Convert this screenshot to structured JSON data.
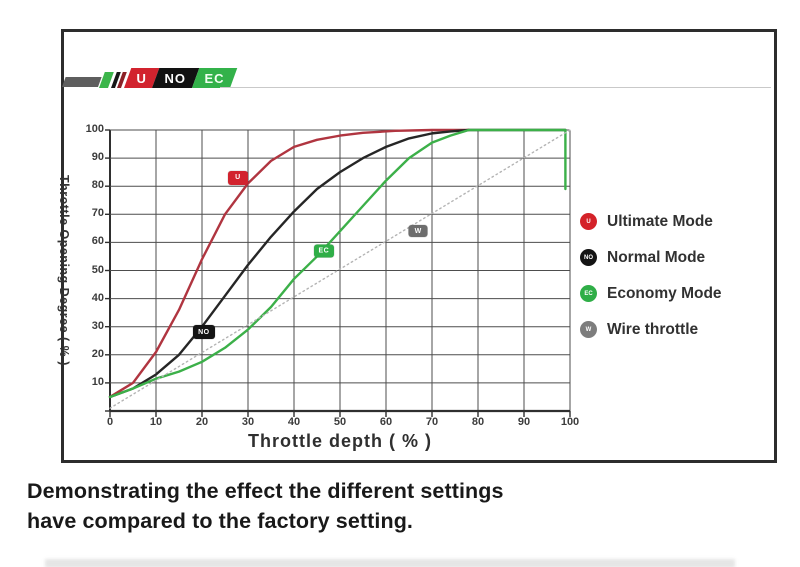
{
  "logo": {
    "stripes": [
      "#3bb54a",
      "#161616",
      "#8c2026"
    ],
    "badges": [
      {
        "label": "U",
        "bg": "#d2232e",
        "fg": "#ffffff"
      },
      {
        "label": "NO",
        "bg": "#121212",
        "fg": "#ffffff"
      },
      {
        "label": "EC",
        "bg": "#33b24a",
        "fg": "#f2fff2"
      }
    ]
  },
  "caption": {
    "line1": "Demonstrating the effect the different settings",
    "line2": "have compared to the factory setting."
  },
  "chart_data": {
    "type": "line",
    "title": "",
    "xlabel": "Throttle depth ( % )",
    "ylabel": "Throttle Opening Degree ( % )",
    "xlim": [
      0,
      100
    ],
    "ylim": [
      0,
      100
    ],
    "x_ticks": [
      0,
      10,
      20,
      30,
      40,
      50,
      60,
      70,
      80,
      90,
      100
    ],
    "y_ticks": [
      0,
      10,
      20,
      30,
      40,
      50,
      60,
      70,
      80,
      90,
      100
    ],
    "grid": true,
    "grid_color": "#4d4d4d",
    "axis_color": "#2f2f2f",
    "legend_position": "right",
    "series": [
      {
        "name": "Ultimate Mode",
        "color": "#b03540",
        "style": "solid",
        "points": [
          [
            0,
            5
          ],
          [
            5,
            10
          ],
          [
            10,
            21
          ],
          [
            15,
            36
          ],
          [
            20,
            54
          ],
          [
            25,
            70
          ],
          [
            30,
            81
          ],
          [
            35,
            89
          ],
          [
            40,
            94
          ],
          [
            45,
            96.5
          ],
          [
            50,
            98
          ],
          [
            55,
            99
          ],
          [
            62,
            99.7
          ],
          [
            70,
            100
          ],
          [
            78,
            100
          ]
        ]
      },
      {
        "name": "Normal Mode",
        "color": "#262626",
        "style": "solid",
        "points": [
          [
            0,
            5
          ],
          [
            5,
            8
          ],
          [
            10,
            13
          ],
          [
            15,
            20
          ],
          [
            20,
            30
          ],
          [
            25,
            41
          ],
          [
            30,
            52
          ],
          [
            35,
            62
          ],
          [
            40,
            71
          ],
          [
            45,
            79
          ],
          [
            50,
            85
          ],
          [
            55,
            90
          ],
          [
            60,
            94
          ],
          [
            65,
            97
          ],
          [
            70,
            98.8
          ],
          [
            74,
            99.5
          ],
          [
            78,
            100
          ],
          [
            99,
            100
          ]
        ]
      },
      {
        "name": "Economy Mode",
        "color": "#3cb049",
        "style": "solid",
        "points": [
          [
            0,
            5
          ],
          [
            5,
            8
          ],
          [
            10,
            11.5
          ],
          [
            15,
            14
          ],
          [
            20,
            17.5
          ],
          [
            25,
            22.5
          ],
          [
            30,
            29
          ],
          [
            35,
            37
          ],
          [
            40,
            47
          ],
          [
            45,
            55
          ],
          [
            50,
            64
          ],
          [
            55,
            73
          ],
          [
            60,
            82
          ],
          [
            65,
            90
          ],
          [
            70,
            95.5
          ],
          [
            74,
            98
          ],
          [
            78,
            100
          ],
          [
            99,
            100
          ],
          [
            99,
            79
          ]
        ]
      },
      {
        "name": "Wire throttle",
        "color": "#b4b4b4",
        "style": "dotted",
        "points": [
          [
            0,
            1
          ],
          [
            100,
            100
          ]
        ]
      }
    ],
    "curve_badges": [
      {
        "label": "U",
        "x": 27.8,
        "y": 83,
        "bg": "#d2232e",
        "w": 20,
        "h": 14
      },
      {
        "label": "NO",
        "x": 20.4,
        "y": 28,
        "bg": "#141414",
        "w": 22,
        "h": 14
      },
      {
        "label": "EC",
        "x": 46.5,
        "y": 57,
        "bg": "#2fae47",
        "w": 20,
        "h": 13
      },
      {
        "label": "W",
        "x": 67,
        "y": 64,
        "bg": "#6d6d6d",
        "w": 19,
        "h": 12
      }
    ],
    "legend": [
      {
        "label": "Ultimate Mode",
        "badge": "U",
        "color": "#d42229"
      },
      {
        "label": "Normal Mode",
        "badge": "NO",
        "color": "#141414"
      },
      {
        "label": "Economy Mode",
        "badge": "EC",
        "color": "#2fae47"
      },
      {
        "label": "Wire throttle",
        "badge": "W",
        "color": "#7d7d7d"
      }
    ]
  }
}
